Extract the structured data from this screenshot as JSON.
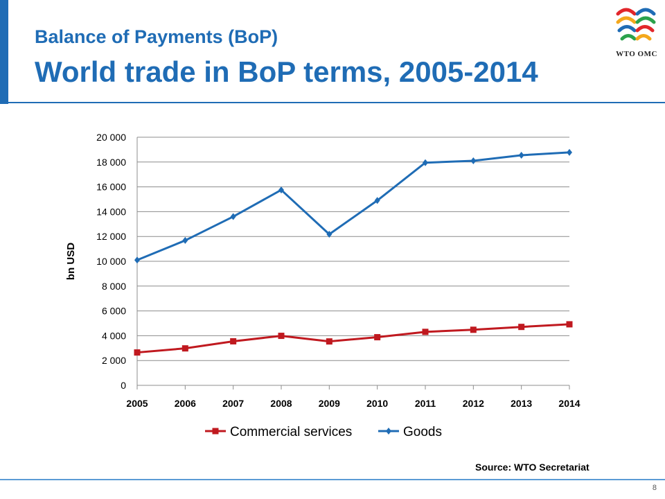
{
  "header": {
    "subtitle": "Balance of Payments (BoP)",
    "title": "World trade in BoP terms, 2005-2014"
  },
  "logo": {
    "text": "WTO OMC"
  },
  "chart_data": {
    "type": "line",
    "categories": [
      "2005",
      "2006",
      "2007",
      "2008",
      "2009",
      "2010",
      "2011",
      "2012",
      "2013",
      "2014"
    ],
    "series": [
      {
        "name": "Commercial services",
        "values": [
          2650,
          2980,
          3550,
          3990,
          3540,
          3880,
          4310,
          4480,
          4710,
          4920
        ],
        "color": "#c0191f",
        "marker": "square"
      },
      {
        "name": "Goods",
        "values": [
          10100,
          11680,
          13600,
          15750,
          12180,
          14900,
          17950,
          18100,
          18550,
          18780
        ],
        "color": "#1f6cb5",
        "marker": "diamond"
      }
    ],
    "ylabel": "bn USD",
    "xlabel": "",
    "ylim": [
      0,
      20000
    ],
    "yticks": [
      0,
      2000,
      4000,
      6000,
      8000,
      10000,
      12000,
      14000,
      16000,
      18000,
      20000
    ],
    "ytick_labels": [
      "0",
      "2 000",
      "4 000",
      "6 000",
      "8 000",
      "10 000",
      "12 000",
      "14 000",
      "16 000",
      "18 000",
      "20 000"
    ],
    "grid": true,
    "legend": "bottom"
  },
  "footer": {
    "source": "Source: WTO Secretariat",
    "page_number": "8"
  }
}
